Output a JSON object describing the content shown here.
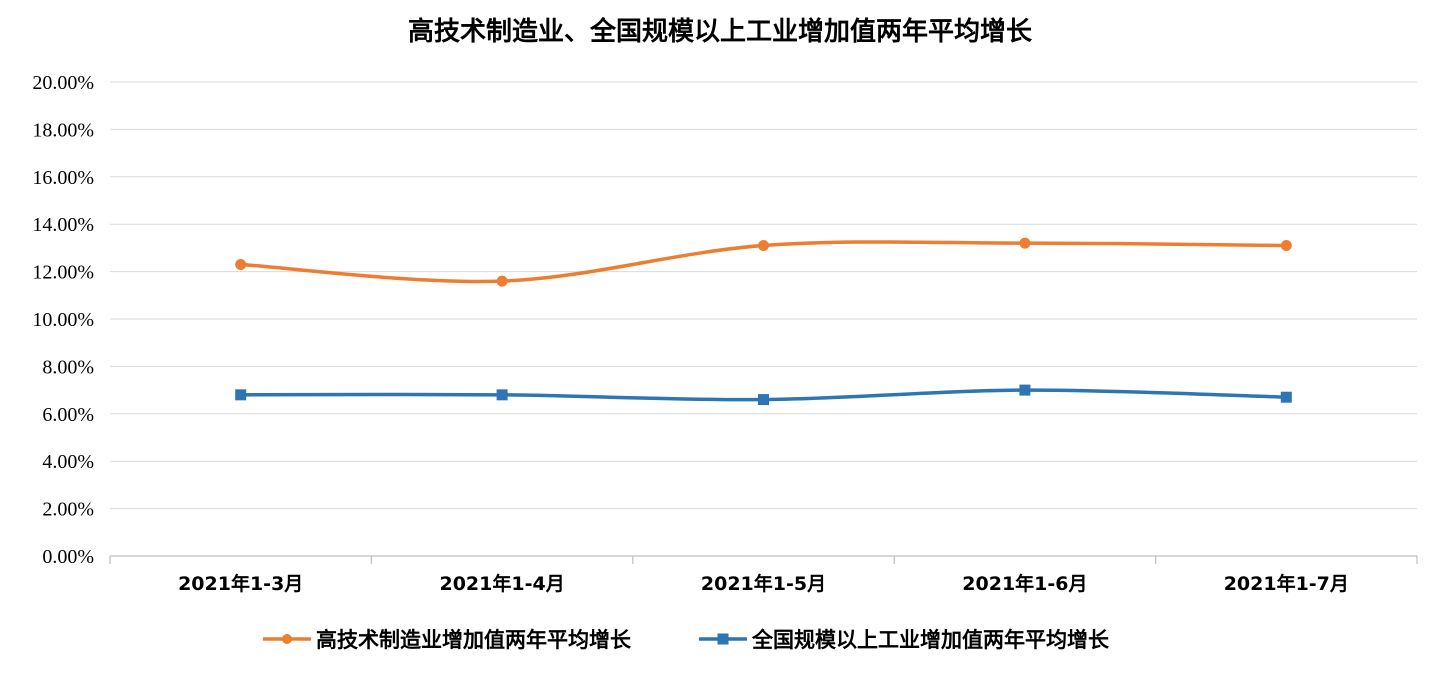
{
  "chart_data": {
    "type": "line",
    "title": "高技术制造业、全国规模以上工业增加值两年平均增长",
    "xlabel": "",
    "ylabel": "",
    "categories": [
      "2021年1-3月",
      "2021年1-4月",
      "2021年1-5月",
      "2021年1-6月",
      "2021年1-7月"
    ],
    "ylim": [
      0,
      20
    ],
    "y_ticks": [
      "0.00%",
      "2.00%",
      "4.00%",
      "6.00%",
      "8.00%",
      "10.00%",
      "12.00%",
      "14.00%",
      "16.00%",
      "18.00%",
      "20.00%"
    ],
    "grid": true,
    "legend_position": "bottom",
    "series": [
      {
        "name": "高技术制造业增加值两年平均增长",
        "values": [
          12.3,
          11.6,
          13.1,
          13.2,
          13.1
        ],
        "color": "#ED7D31",
        "marker": "circle",
        "smooth": true
      },
      {
        "name": "全国规模以上工业增加值两年平均增长",
        "values": [
          6.8,
          6.8,
          6.6,
          7.0,
          6.7
        ],
        "color": "#2E75B6",
        "marker": "square",
        "smooth": true
      }
    ]
  }
}
